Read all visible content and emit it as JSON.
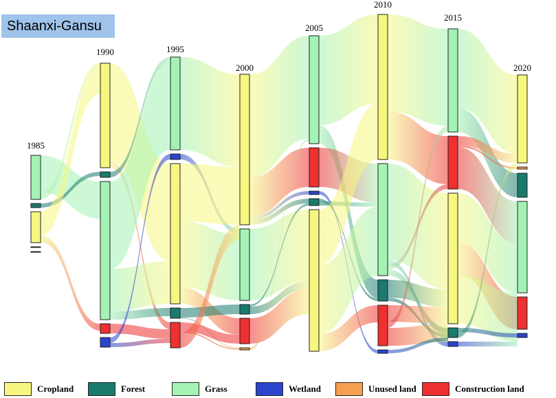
{
  "title": "Shaanxi-Gansu",
  "colors": {
    "Cropland": "#f7f780",
    "Forest": "#1a7a6e",
    "Grass": "#a4f2b4",
    "Wetland": "#2a44cc",
    "Unused land": "#f5a050",
    "Construction land": "#ee3030"
  },
  "legend": [
    {
      "label": "Cropland",
      "key": "Cropland"
    },
    {
      "label": "Forest",
      "key": "Forest"
    },
    {
      "label": "Grass",
      "key": "Grass"
    },
    {
      "label": "Wetland",
      "key": "Wetland"
    },
    {
      "label": "Unused land",
      "key": "Unused land"
    },
    {
      "label": "Construction land",
      "key": "Construction land"
    }
  ],
  "chart_data": {
    "type": "sankey",
    "title": "Shaanxi-Gansu",
    "years": [
      "1985",
      "1990",
      "1995",
      "2000",
      "2005",
      "2010",
      "2015",
      "2020"
    ],
    "columns": [
      {
        "year": "1985",
        "nodes": [
          {
            "type": "Grass",
            "size": 64
          },
          {
            "type": "Forest",
            "size": 6
          },
          {
            "type": "Cropland",
            "size": 45
          },
          {
            "type": "Unused land",
            "size": 1
          },
          {
            "type": "Construction land",
            "size": 1
          }
        ]
      },
      {
        "year": "1990",
        "nodes": [
          {
            "type": "Cropland",
            "size": 152
          },
          {
            "type": "Forest",
            "size": 8
          },
          {
            "type": "Grass",
            "size": 201
          },
          {
            "type": "Construction land",
            "size": 14
          },
          {
            "type": "Wetland",
            "size": 14
          }
        ]
      },
      {
        "year": "1995",
        "nodes": [
          {
            "type": "Grass",
            "size": 135
          },
          {
            "type": "Wetland",
            "size": 8
          },
          {
            "type": "Cropland",
            "size": 204
          },
          {
            "type": "Forest",
            "size": 15
          },
          {
            "type": "Construction land",
            "size": 37
          }
        ]
      },
      {
        "year": "2000",
        "nodes": [
          {
            "type": "Cropland",
            "size": 219
          },
          {
            "type": "Grass",
            "size": 104
          },
          {
            "type": "Forest",
            "size": 14
          },
          {
            "type": "Construction land",
            "size": 37
          },
          {
            "type": "Unused land",
            "size": 3
          }
        ]
      },
      {
        "year": "2005",
        "nodes": [
          {
            "type": "Grass",
            "size": 157
          },
          {
            "type": "Construction land",
            "size": 57
          },
          {
            "type": "Wetland",
            "size": 5
          },
          {
            "type": "Forest",
            "size": 10
          },
          {
            "type": "Cropland",
            "size": 206
          }
        ]
      },
      {
        "year": "2010",
        "nodes": [
          {
            "type": "Cropland",
            "size": 211
          },
          {
            "type": "Grass",
            "size": 163
          },
          {
            "type": "Forest",
            "size": 31
          },
          {
            "type": "Construction land",
            "size": 59
          },
          {
            "type": "Wetland",
            "size": 5
          }
        ]
      },
      {
        "year": "2015",
        "nodes": [
          {
            "type": "Grass",
            "size": 150
          },
          {
            "type": "Construction land",
            "size": 77
          },
          {
            "type": "Cropland",
            "size": 190
          },
          {
            "type": "Forest",
            "size": 14
          },
          {
            "type": "Wetland",
            "size": 7
          }
        ]
      },
      {
        "year": "2020",
        "nodes": [
          {
            "type": "Cropland",
            "size": 128
          },
          {
            "type": "Unused land",
            "size": 3
          },
          {
            "type": "Forest",
            "size": 35
          },
          {
            "type": "Grass",
            "size": 133
          },
          {
            "type": "Construction land",
            "size": 47
          },
          {
            "type": "Wetland",
            "size": 6
          }
        ]
      }
    ],
    "flows": [
      {
        "year": "1985",
        "from": "Grass",
        "to": "Grass",
        "value": 54
      },
      {
        "year": "1985",
        "from": "Grass",
        "to": "Cropland",
        "value": 10
      },
      {
        "year": "1985",
        "from": "Forest",
        "to": "Forest",
        "value": 6
      },
      {
        "year": "1985",
        "from": "Cropland",
        "to": "Cropland",
        "value": 35
      },
      {
        "year": "1985",
        "from": "Cropland",
        "to": "Construction land",
        "value": 10
      },
      {
        "year": "1990",
        "from": "Cropland",
        "to": "Cropland",
        "value": 142
      },
      {
        "year": "1990",
        "from": "Cropland",
        "to": "Construction land",
        "value": 10
      },
      {
        "year": "1990",
        "from": "Forest",
        "to": "Grass",
        "value": 8
      },
      {
        "year": "1990",
        "from": "Grass",
        "to": "Grass",
        "value": 127
      },
      {
        "year": "1990",
        "from": "Grass",
        "to": "Cropland",
        "value": 62
      },
      {
        "year": "1990",
        "from": "Grass",
        "to": "Forest",
        "value": 12
      },
      {
        "year": "1990",
        "from": "Construction land",
        "to": "Construction land",
        "value": 14
      },
      {
        "year": "1990",
        "from": "Wetland",
        "to": "Wetland",
        "value": 8
      },
      {
        "year": "1990",
        "from": "Wetland",
        "to": "Construction land",
        "value": 6
      },
      {
        "year": "1995",
        "from": "Grass",
        "to": "Cropland",
        "value": 135
      },
      {
        "year": "1995",
        "from": "Wetland",
        "to": "Grass",
        "value": 8
      },
      {
        "year": "1995",
        "from": "Cropland",
        "to": "Cropland",
        "value": 84
      },
      {
        "year": "1995",
        "from": "Cropland",
        "to": "Grass",
        "value": 96
      },
      {
        "year": "1995",
        "from": "Cropland",
        "to": "Construction land",
        "value": 24
      },
      {
        "year": "1995",
        "from": "Forest",
        "to": "Forest",
        "value": 14
      },
      {
        "year": "1995",
        "from": "Forest",
        "to": "Unused land",
        "value": 1
      },
      {
        "year": "1995",
        "from": "Construction land",
        "to": "Construction land",
        "value": 13
      },
      {
        "year": "1995",
        "from": "Construction land",
        "to": "Unused land",
        "value": 2
      },
      {
        "year": "1995",
        "from": "Construction land",
        "to": "Cropland",
        "value": 22
      },
      {
        "year": "2000",
        "from": "Cropland",
        "to": "Grass",
        "value": 150
      },
      {
        "year": "2000",
        "from": "Cropland",
        "to": "Construction land",
        "value": 57
      },
      {
        "year": "2000",
        "from": "Cropland",
        "to": "Wetland",
        "value": 5
      },
      {
        "year": "2000",
        "from": "Cropland",
        "to": "Forest",
        "value": 7
      },
      {
        "year": "2000",
        "from": "Grass",
        "to": "Cropland",
        "value": 104
      },
      {
        "year": "2000",
        "from": "Forest",
        "to": "Forest",
        "value": 3
      },
      {
        "year": "2000",
        "from": "Forest",
        "to": "Cropland",
        "value": 11
      },
      {
        "year": "2000",
        "from": "Construction land",
        "to": "Cropland",
        "value": 37
      },
      {
        "year": "2000",
        "from": "Unused land",
        "to": "Grass",
        "value": 3
      },
      {
        "year": "2005",
        "from": "Grass",
        "to": "Cropland",
        "value": 130
      },
      {
        "year": "2005",
        "from": "Grass",
        "to": "Forest",
        "value": 27
      },
      {
        "year": "2005",
        "from": "Construction land",
        "to": "Grass",
        "value": 57
      },
      {
        "year": "2005",
        "from": "Wetland",
        "to": "Wetland",
        "value": 5
      },
      {
        "year": "2005",
        "from": "Forest",
        "to": "Forest",
        "value": 4
      },
      {
        "year": "2005",
        "from": "Forest",
        "to": "Grass",
        "value": 6
      },
      {
        "year": "2005",
        "from": "Cropland",
        "to": "Cropland",
        "value": 81
      },
      {
        "year": "2005",
        "from": "Cropland",
        "to": "Grass",
        "value": 100
      },
      {
        "year": "2005",
        "from": "Cropland",
        "to": "Construction land",
        "value": 25
      },
      {
        "year": "2010",
        "from": "Cropland",
        "to": "Grass",
        "value": 141
      },
      {
        "year": "2010",
        "from": "Cropland",
        "to": "Construction land",
        "value": 70
      },
      {
        "year": "2010",
        "from": "Grass",
        "to": "Cropland",
        "value": 140
      },
      {
        "year": "2010",
        "from": "Grass",
        "to": "Wetland",
        "value": 7
      },
      {
        "year": "2010",
        "from": "Grass",
        "to": "Construction land",
        "value": 7
      },
      {
        "year": "2010",
        "from": "Grass",
        "to": "Forest",
        "value": 9
      },
      {
        "year": "2010",
        "from": "Forest",
        "to": "Cropland",
        "value": 26
      },
      {
        "year": "2010",
        "from": "Forest",
        "to": "Forest",
        "value": 5
      },
      {
        "year": "2010",
        "from": "Construction land",
        "to": "Cropland",
        "value": 24
      },
      {
        "year": "2010",
        "from": "Construction land",
        "to": "Grass",
        "value": 9
      },
      {
        "year": "2010",
        "from": "Construction land",
        "to": "Wetland",
        "value": 0
      },
      {
        "year": "2010",
        "from": "Construction land",
        "to": "Cropland",
        "value": 26
      },
      {
        "year": "2010",
        "from": "Wetland",
        "to": "Wetland",
        "value": 0
      },
      {
        "year": "2010",
        "from": "Wetland",
        "to": "Forest",
        "value": 5
      },
      {
        "year": "2015",
        "from": "Grass",
        "to": "Cropland",
        "value": 115
      },
      {
        "year": "2015",
        "from": "Grass",
        "to": "Forest",
        "value": 35
      },
      {
        "year": "2015",
        "from": "Construction land",
        "to": "Cropland",
        "value": 13
      },
      {
        "year": "2015",
        "from": "Construction land",
        "to": "Unused land",
        "value": 3
      },
      {
        "year": "2015",
        "from": "Construction land",
        "to": "Grass",
        "value": 61
      },
      {
        "year": "2015",
        "from": "Cropland",
        "to": "Grass",
        "value": 72
      },
      {
        "year": "2015",
        "from": "Cropland",
        "to": "Construction land",
        "value": 47
      },
      {
        "year": "2015",
        "from": "Cropland",
        "to": "Cropland",
        "value": 0
      },
      {
        "year": "2015",
        "from": "Cropland",
        "to": "Wetland",
        "value": 0
      },
      {
        "year": "2015",
        "from": "Cropland",
        "to": "Grass",
        "value": 71
      },
      {
        "year": "2015",
        "from": "Forest",
        "to": "Wetland",
        "value": 6
      },
      {
        "year": "2015",
        "from": "Forest",
        "to": "Grass",
        "value": 0
      },
      {
        "year": "2015",
        "from": "Forest",
        "to": "Cropland",
        "value": 8
      },
      {
        "year": "2015",
        "from": "Wetland",
        "to": "Wetland",
        "value": 0
      },
      {
        "year": "2015",
        "from": "Wetland",
        "to": "Grass",
        "value": 7
      }
    ]
  }
}
